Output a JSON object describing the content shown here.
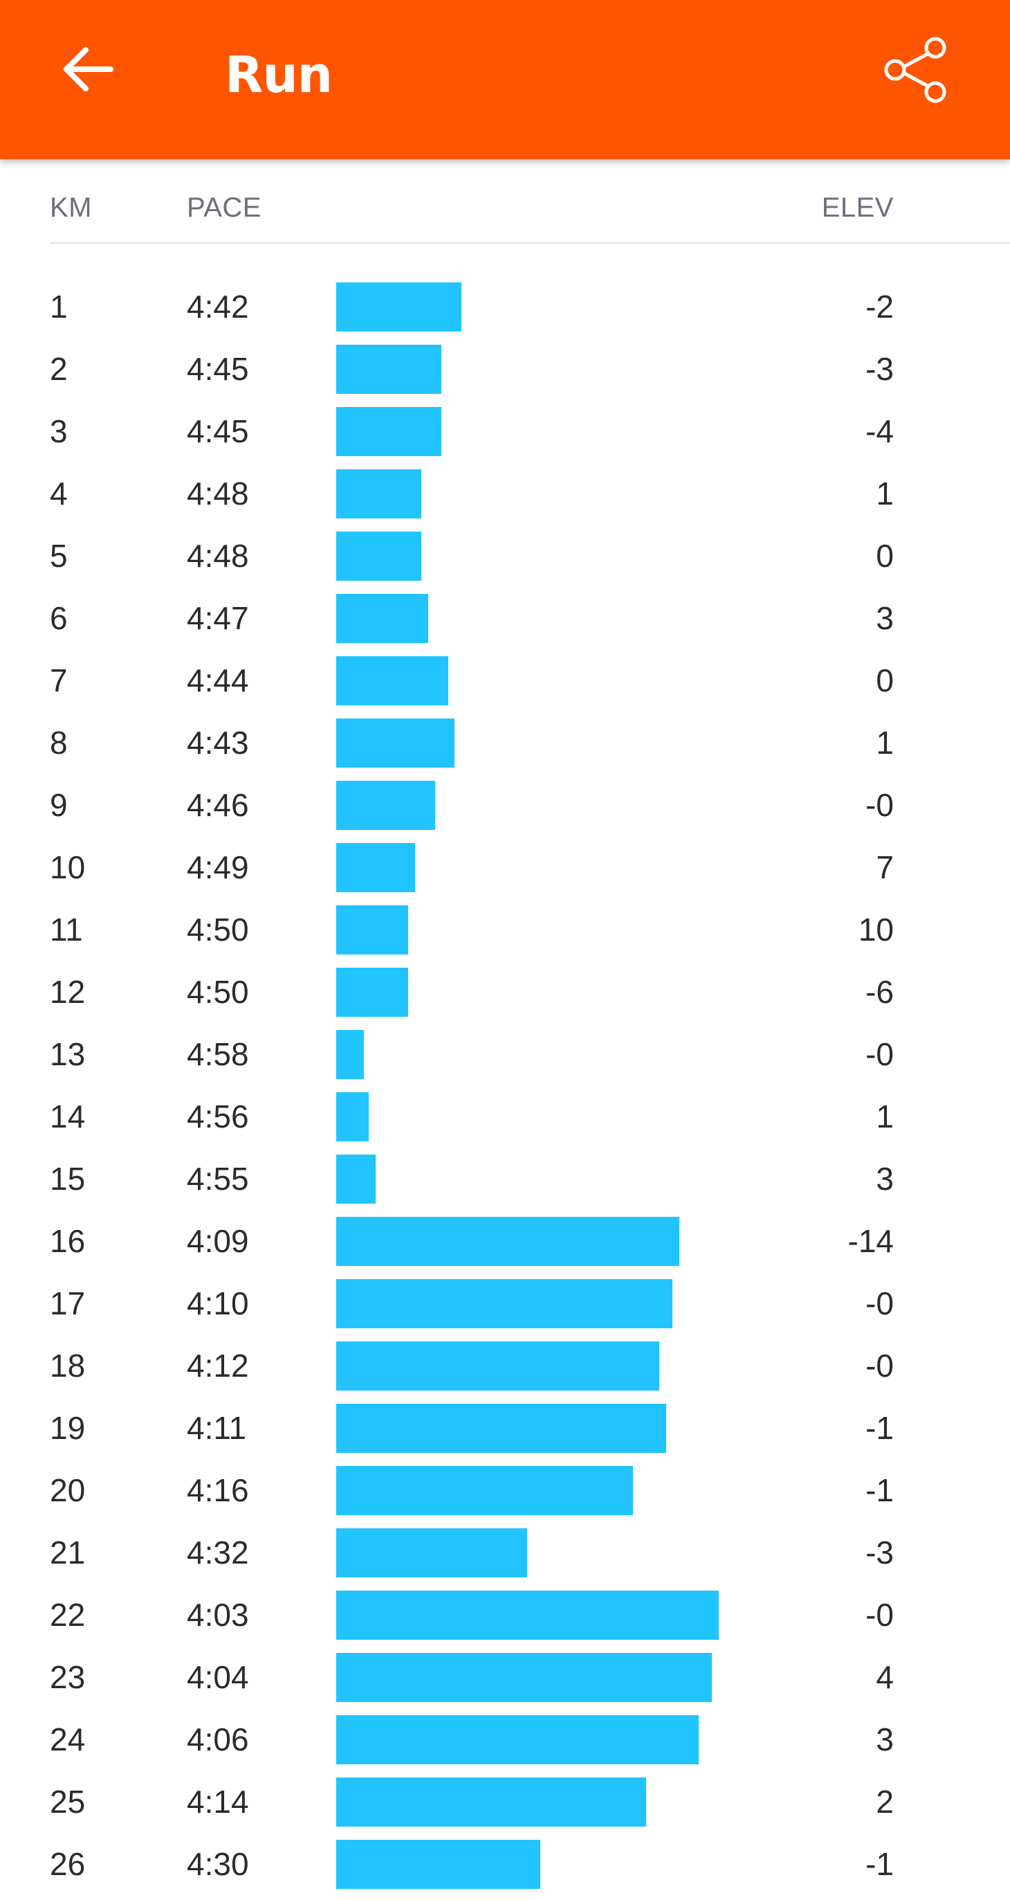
{
  "app_bar": {
    "title": "Run",
    "back_icon": "arrow-left-icon",
    "share_icon": "share-icon",
    "background_color": "#FF5500"
  },
  "table": {
    "headers": {
      "km": "KM",
      "pace": "PACE",
      "elev": "ELEV"
    },
    "bar_color": "#21C4FF",
    "rows": [
      {
        "km": "1",
        "pace": "4:42",
        "elev": "-2"
      },
      {
        "km": "2",
        "pace": "4:45",
        "elev": "-3"
      },
      {
        "km": "3",
        "pace": "4:45",
        "elev": "-4"
      },
      {
        "km": "4",
        "pace": "4:48",
        "elev": "1"
      },
      {
        "km": "5",
        "pace": "4:48",
        "elev": "0"
      },
      {
        "km": "6",
        "pace": "4:47",
        "elev": "3"
      },
      {
        "km": "7",
        "pace": "4:44",
        "elev": "0"
      },
      {
        "km": "8",
        "pace": "4:43",
        "elev": "1"
      },
      {
        "km": "9",
        "pace": "4:46",
        "elev": "-0"
      },
      {
        "km": "10",
        "pace": "4:49",
        "elev": "7"
      },
      {
        "km": "11",
        "pace": "4:50",
        "elev": "10"
      },
      {
        "km": "12",
        "pace": "4:50",
        "elev": "-6"
      },
      {
        "km": "13",
        "pace": "4:58",
        "elev": "-0"
      },
      {
        "km": "14",
        "pace": "4:56",
        "elev": "1"
      },
      {
        "km": "15",
        "pace": "4:55",
        "elev": "3"
      },
      {
        "km": "16",
        "pace": "4:09",
        "elev": "-14"
      },
      {
        "km": "17",
        "pace": "4:10",
        "elev": "-0"
      },
      {
        "km": "18",
        "pace": "4:12",
        "elev": "-0"
      },
      {
        "km": "19",
        "pace": "4:11",
        "elev": "-1"
      },
      {
        "km": "20",
        "pace": "4:16",
        "elev": "-1"
      },
      {
        "km": "21",
        "pace": "4:32",
        "elev": "-3"
      },
      {
        "km": "22",
        "pace": "4:03",
        "elev": "-0"
      },
      {
        "km": "23",
        "pace": "4:04",
        "elev": "4"
      },
      {
        "km": "24",
        "pace": "4:06",
        "elev": "3"
      },
      {
        "km": "25",
        "pace": "4:14",
        "elev": "2"
      },
      {
        "km": "26",
        "pace": "4:30",
        "elev": "-1"
      }
    ]
  }
}
